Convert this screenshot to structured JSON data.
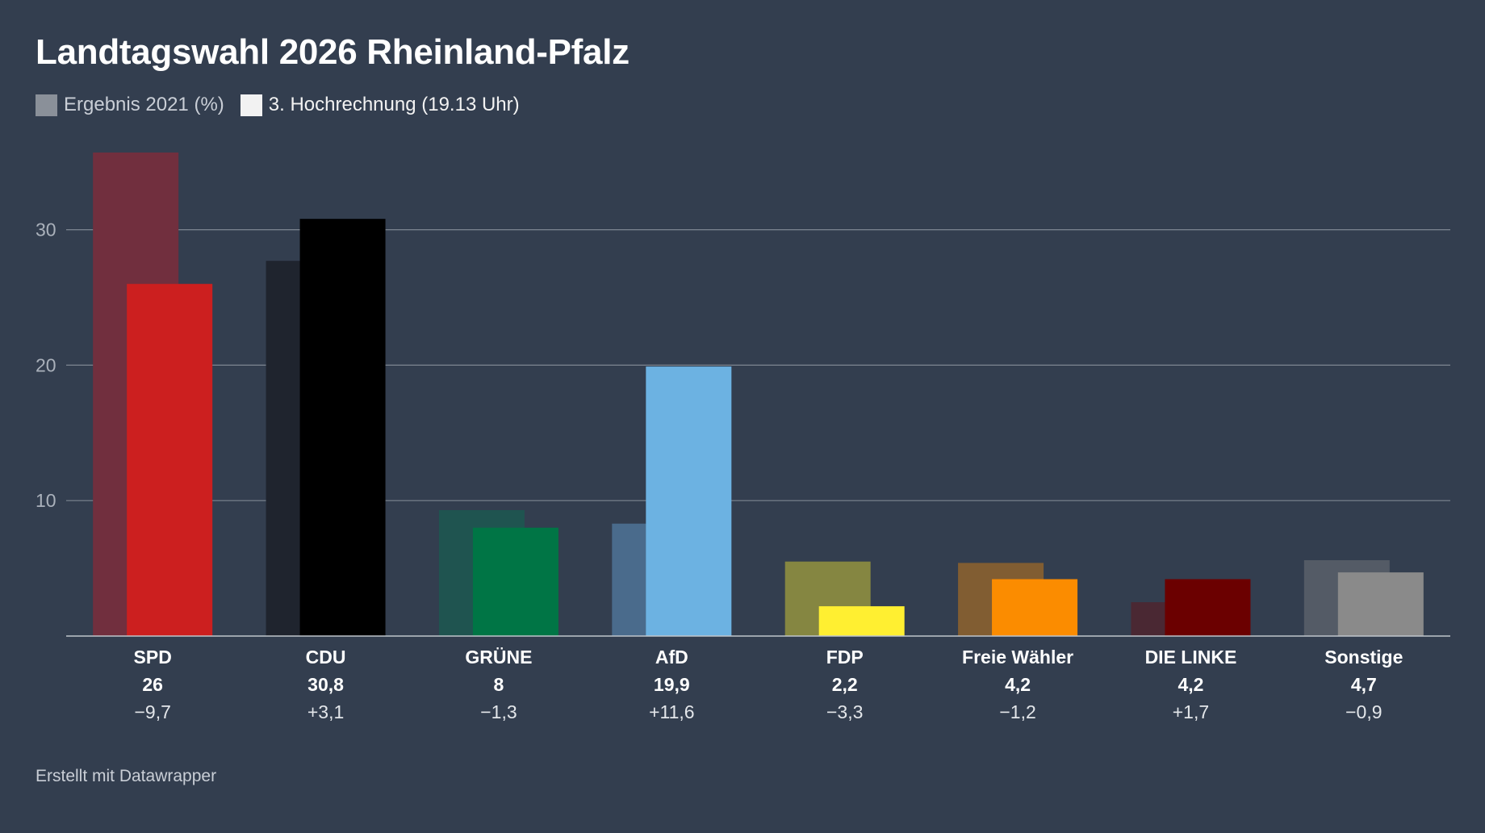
{
  "title": "Landtagswahl 2026 Rheinland-Pfalz",
  "legend": {
    "previous": {
      "label": "Ergebnis 2021 (%)",
      "color": "#8a9099"
    },
    "current": {
      "label": "3. Hochrechnung (19.13 Uhr)",
      "color": "#f2f2f2"
    }
  },
  "footer": "Erstellt mit Datawrapper",
  "chart_data": {
    "type": "bar",
    "title": "Landtagswahl 2026 Rheinland-Pfalz",
    "xlabel": "",
    "ylabel": "",
    "ylim": [
      0,
      35.7
    ],
    "yticks": [
      10,
      20,
      30
    ],
    "grid": true,
    "legend_position": "top-left",
    "categories": [
      "SPD",
      "CDU",
      "GRÜNE",
      "AfD",
      "FDP",
      "Freie Wähler",
      "DIE LINKE",
      "Sonstige"
    ],
    "series": [
      {
        "name": "Ergebnis 2021 (%)",
        "values": [
          35.7,
          27.7,
          9.3,
          8.3,
          5.5,
          5.4,
          2.5,
          5.6
        ],
        "colors": [
          "#712f3e",
          "#1f242e",
          "#1f5450",
          "#4a6b8c",
          "#858641",
          "#815d32",
          "#4a2833",
          "#545b66"
        ]
      },
      {
        "name": "3. Hochrechnung (19.13 Uhr)",
        "values": [
          26,
          30.8,
          8,
          19.9,
          2.2,
          4.2,
          4.2,
          4.7
        ],
        "value_labels": [
          "26",
          "30,8",
          "8",
          "19,9",
          "2,2",
          "4,2",
          "4,2",
          "4,7"
        ],
        "colors": [
          "#cc1f1f",
          "#000000",
          "#007545",
          "#6cb2e2",
          "#ffef31",
          "#fb8c00",
          "#6b0000",
          "#8a8a8a"
        ]
      }
    ],
    "changes": [
      "−9,7",
      "+3,1",
      "−1,3",
      "+11,6",
      "−3,3",
      "−1,2",
      "+1,7",
      "−0,9"
    ]
  }
}
